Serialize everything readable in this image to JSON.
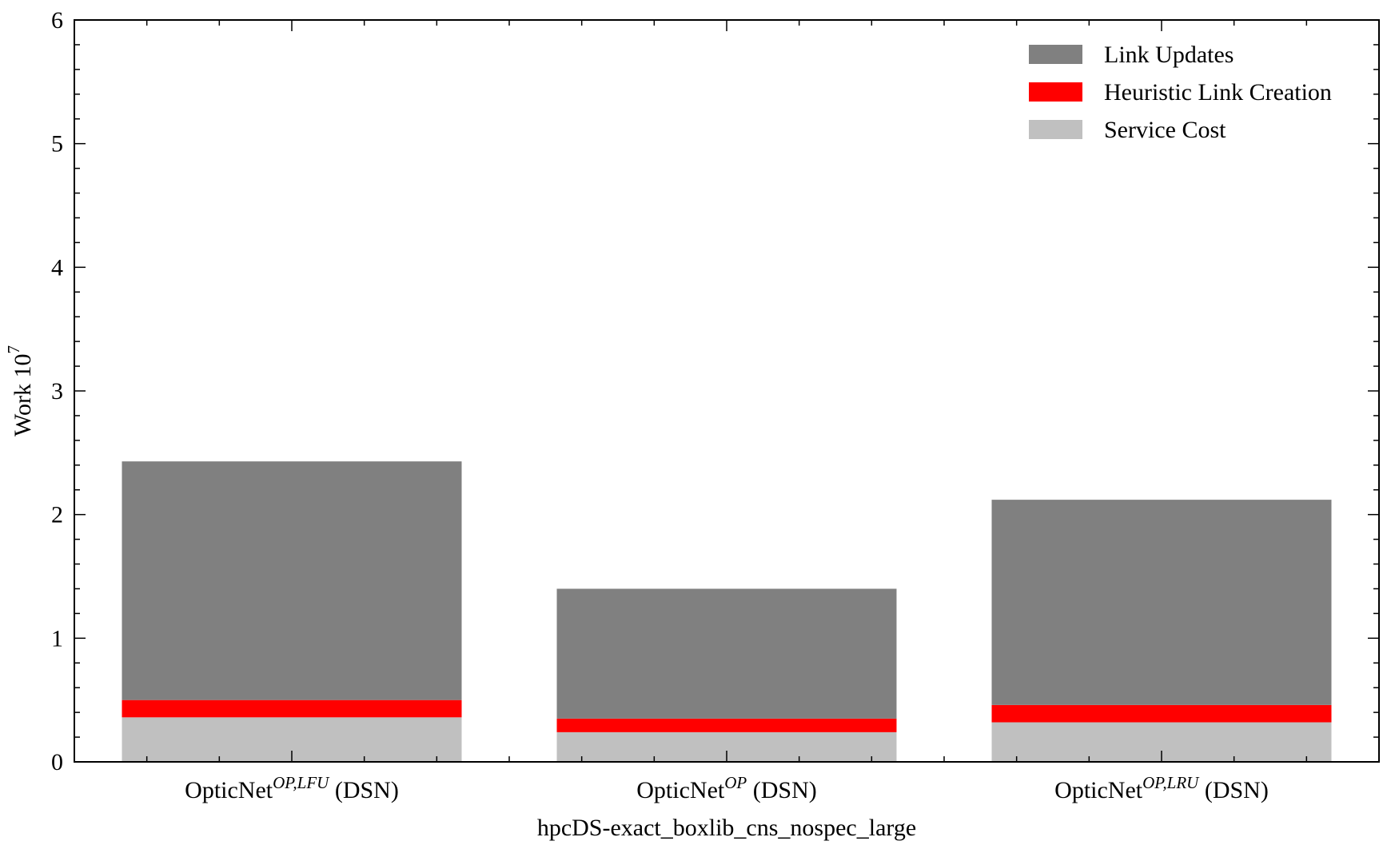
{
  "chart_data": {
    "type": "bar",
    "stacked": true,
    "xlabel": "hpcDS-exact_boxlib_cns_nospec_large",
    "ylabel": {
      "base": "Work 10",
      "exponent": "7"
    },
    "ylim": [
      0,
      6
    ],
    "yticks": [
      0,
      1,
      2,
      3,
      4,
      5,
      6
    ],
    "grid": false,
    "legend": "top-right",
    "categories": [
      {
        "base": "OpticNet",
        "sup": "OP,LFU",
        "suffix": " (DSN)"
      },
      {
        "base": "OpticNet",
        "sup": "OP",
        "suffix": " (DSN)"
      },
      {
        "base": "OpticNet",
        "sup": "OP,LRU",
        "suffix": " (DSN)"
      }
    ],
    "series": [
      {
        "name": "Service Cost",
        "color": "#c0c0c0",
        "values": [
          0.36,
          0.24,
          0.32
        ]
      },
      {
        "name": "Heuristic Link Creation",
        "color": "#ff0000",
        "values": [
          0.14,
          0.11,
          0.14
        ]
      },
      {
        "name": "Link Updates",
        "color": "#808080",
        "values": [
          1.93,
          1.05,
          1.66
        ]
      }
    ],
    "legend_order": [
      "Link Updates",
      "Heuristic Link Creation",
      "Service Cost"
    ]
  }
}
